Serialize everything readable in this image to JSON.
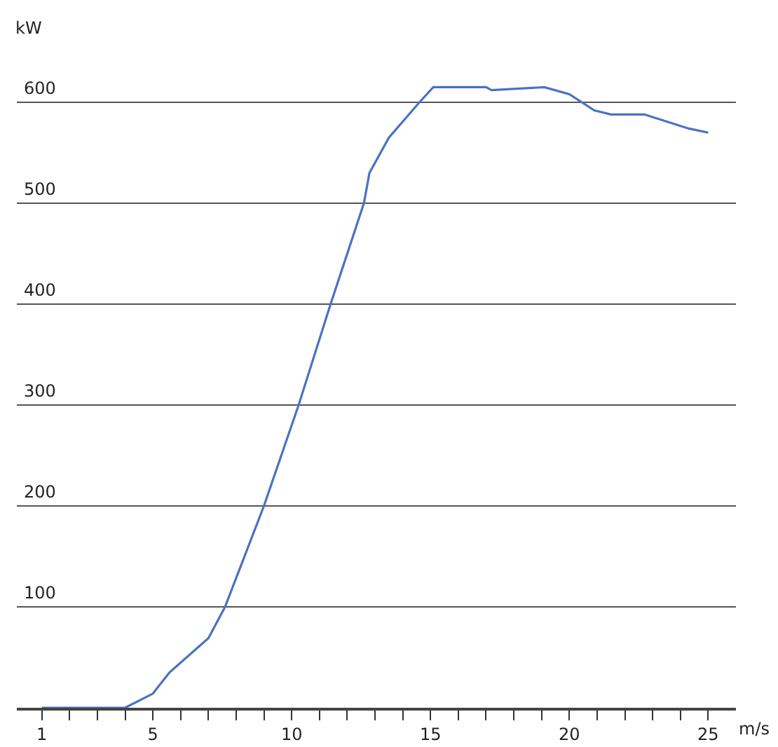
{
  "chart_data": {
    "type": "line",
    "xlabel": "m/s",
    "ylabel": "kW",
    "x": [
      1,
      2,
      3,
      4,
      5,
      5.6,
      7,
      7.6,
      9,
      10.25,
      11.4,
      12.6,
      12.8,
      13.5,
      14.6,
      15.1,
      17,
      17.2,
      19.1,
      20,
      20.9,
      21.5,
      22.7,
      24.3,
      25
    ],
    "series": [
      {
        "color": "#4a72c0",
        "values": [
          0,
          0,
          0,
          0,
          14,
          35,
          69,
          100,
          200,
          300,
          400,
          500,
          530,
          565,
          600,
          615,
          615,
          612,
          615,
          608,
          592,
          588,
          588,
          574,
          570
        ]
      }
    ],
    "xlim": [
      0.1,
      26
    ],
    "xticks": [
      1,
      {
        "value": 2,
        "label": null
      },
      {
        "value": 3,
        "label": null
      },
      {
        "value": 4,
        "label": null
      },
      5,
      {
        "value": 6,
        "label": null
      },
      {
        "value": 7,
        "label": null
      },
      {
        "value": 8,
        "label": null
      },
      {
        "value": 9,
        "label": null
      },
      10,
      {
        "value": 11,
        "label": null
      },
      {
        "value": 12,
        "label": null
      },
      {
        "value": 13,
        "label": null
      },
      {
        "value": 14,
        "label": null
      },
      15,
      {
        "value": 16,
        "label": null
      },
      {
        "value": 17,
        "label": null
      },
      {
        "value": 18,
        "label": null
      },
      {
        "value": 19,
        "label": null
      },
      20,
      {
        "value": 21,
        "label": null
      },
      {
        "value": 22,
        "label": null
      },
      {
        "value": 23,
        "label": null
      },
      {
        "value": 24,
        "label": null
      },
      25
    ],
    "ylim": [
      0,
      700
    ],
    "yticks": [
      100,
      200,
      300,
      400,
      500,
      600
    ],
    "grid": "y",
    "marker": "none",
    "line_style": "solid"
  }
}
